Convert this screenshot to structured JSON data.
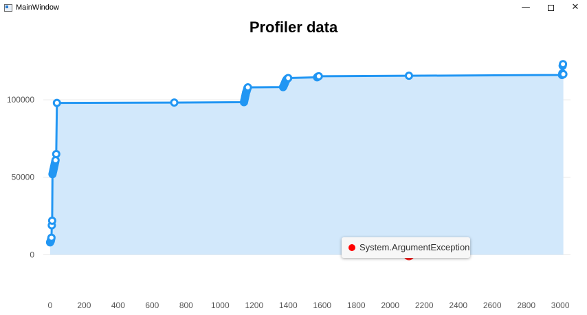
{
  "window": {
    "title": "MainWindow",
    "minimize_icon": "minimize-icon",
    "maximize_icon": "maximize-icon",
    "close_icon": "close-icon"
  },
  "chart_data": {
    "type": "area",
    "title": "Profiler data",
    "xlabel": "",
    "ylabel": "",
    "xlim": [
      -40,
      3060
    ],
    "ylim": [
      -22000,
      120000
    ],
    "x_ticks": [
      0,
      200,
      400,
      600,
      800,
      1000,
      1200,
      1400,
      1600,
      1800,
      2000,
      2200,
      2400,
      2600,
      2800,
      3000
    ],
    "y_ticks": [
      0,
      50000,
      100000
    ],
    "grid": true,
    "line_color": "#2196f3",
    "fill_color": "#d2e8fb",
    "series": [
      {
        "x": [
          0,
          2,
          4,
          6,
          8,
          10,
          12,
          14,
          16,
          18,
          20,
          22,
          24,
          26,
          28,
          30,
          32,
          36,
          40,
          730,
          1140,
          1142,
          1144,
          1146,
          1148,
          1150,
          1152,
          1155,
          1158,
          1160,
          1163,
          1370,
          1373,
          1376,
          1379,
          1382,
          1385,
          1388,
          1391,
          1394,
          1397,
          1400,
          1570,
          1575,
          1580,
          2110,
          3010,
          3012,
          3014,
          3016,
          3018
        ],
        "y": [
          8000,
          8500,
          9000,
          10000,
          11000,
          19000,
          22000,
          52000,
          53000,
          54000,
          55000,
          56000,
          57000,
          58000,
          59000,
          60000,
          61000,
          65000,
          98000,
          98200,
          98500,
          99500,
          100500,
          101500,
          102500,
          103500,
          104500,
          105500,
          106500,
          107500,
          108000,
          108200,
          108800,
          109600,
          110400,
          111200,
          112000,
          112600,
          113100,
          113500,
          113800,
          114000,
          114500,
          115000,
          115200,
          115500,
          116000,
          117000,
          122000,
          123000,
          116500
        ]
      },
      {
        "name": "System.ArgumentException",
        "color": "#ff0000",
        "x": [
          2110
        ],
        "y": [
          0
        ]
      }
    ]
  },
  "tooltip": {
    "label": "System.ArgumentException",
    "color": "#ff0000"
  }
}
